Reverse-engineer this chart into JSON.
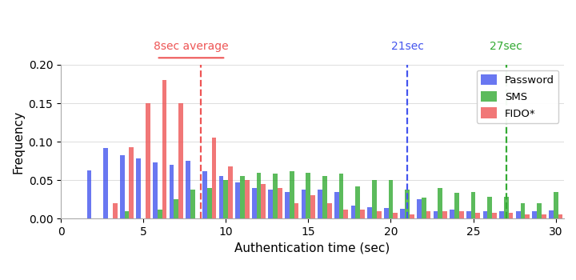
{
  "xlabel": "Authentication time (sec)",
  "ylabel": "Frequency",
  "xlim": [
    1.5,
    30.5
  ],
  "ylim": [
    0,
    0.2
  ],
  "bar_width": 0.28,
  "x_ticks": [
    0,
    5,
    10,
    15,
    20,
    25,
    30
  ],
  "yticks": [
    0.0,
    0.05,
    0.1,
    0.15,
    0.2
  ],
  "vline_fido_x": 8.5,
  "vline_fido_label": "8sec average",
  "vline_password_x": 21,
  "vline_password_label": "21sec",
  "vline_sms_x": 27,
  "vline_sms_label": "27sec",
  "color_password": "#4455EE",
  "color_sms": "#33AA33",
  "color_fido": "#EE5555",
  "bg_color": "#FFFFFF",
  "bins": [
    2,
    3,
    4,
    5,
    6,
    7,
    8,
    9,
    10,
    11,
    12,
    13,
    14,
    15,
    16,
    17,
    18,
    19,
    20,
    21,
    22,
    23,
    24,
    25,
    26,
    27,
    28,
    29,
    30
  ],
  "password_freq": [
    0.063,
    0.092,
    0.082,
    0.078,
    0.073,
    0.07,
    0.075,
    0.062,
    0.055,
    0.047,
    0.04,
    0.038,
    0.035,
    0.038,
    0.038,
    0.035,
    0.017,
    0.015,
    0.014,
    0.013,
    0.025,
    0.01,
    0.012,
    0.01,
    0.01,
    0.01,
    0.01,
    0.01,
    0.011
  ],
  "sms_freq": [
    0.0,
    0.0,
    0.01,
    0.0,
    0.012,
    0.025,
    0.038,
    0.04,
    0.05,
    0.055,
    0.06,
    0.058,
    0.062,
    0.06,
    0.055,
    0.058,
    0.042,
    0.05,
    0.05,
    0.038,
    0.027,
    0.04,
    0.033,
    0.035,
    0.028,
    0.028,
    0.02,
    0.02,
    0.035
  ],
  "fido_freq": [
    0.0,
    0.02,
    0.093,
    0.15,
    0.18,
    0.15,
    0.0,
    0.105,
    0.068,
    0.05,
    0.045,
    0.04,
    0.02,
    0.03,
    0.02,
    0.012,
    0.012,
    0.01,
    0.008,
    0.005,
    0.01,
    0.01,
    0.01,
    0.008,
    0.008,
    0.008,
    0.005,
    0.005,
    0.005
  ]
}
